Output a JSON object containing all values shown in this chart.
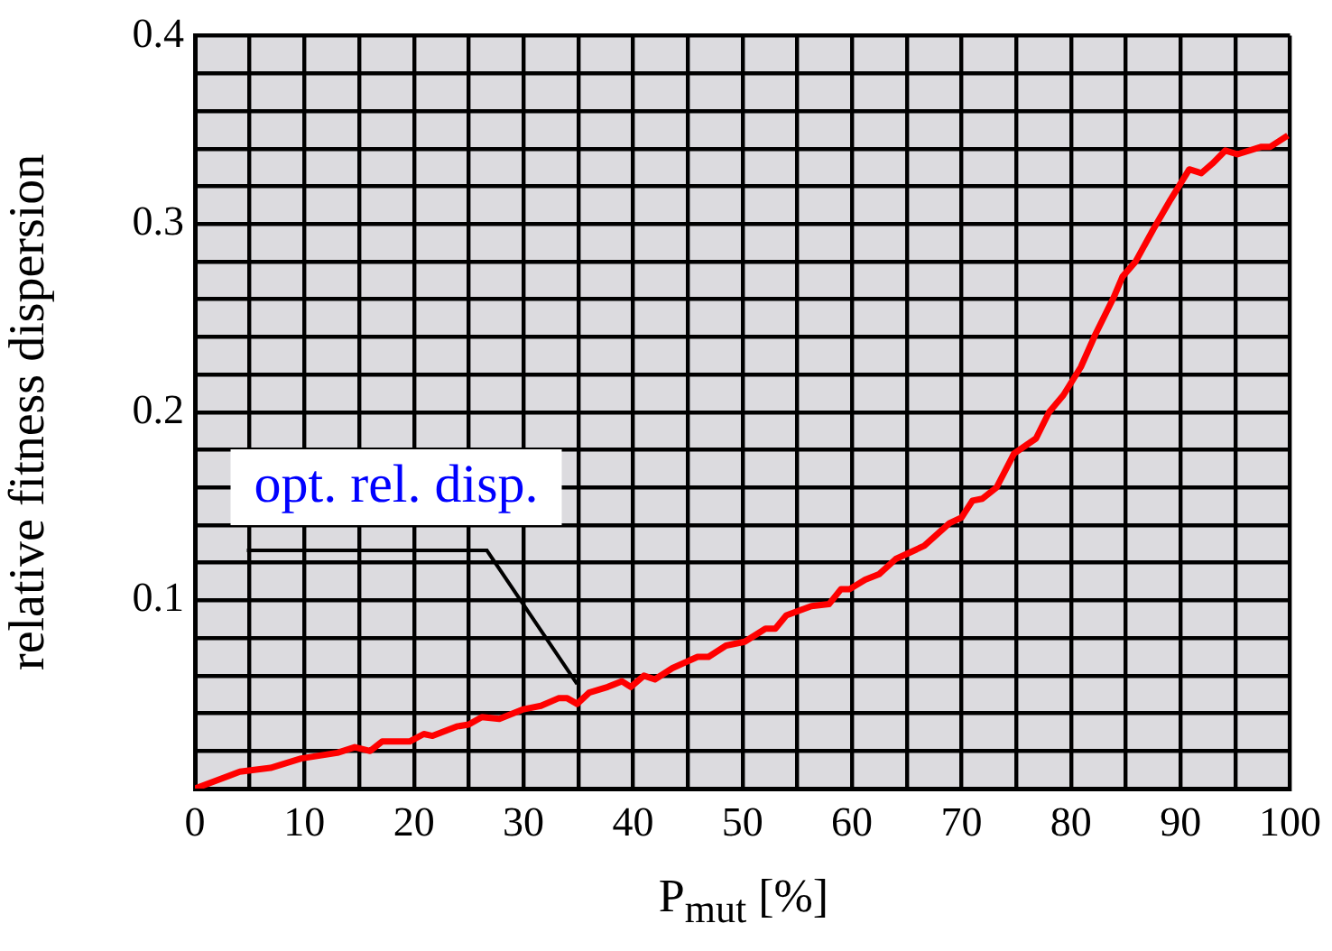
{
  "chart_data": {
    "type": "line",
    "xlabel": "P$_{mut}$ [%]",
    "ylabel": "relative fitness dispersion",
    "x": [
      0,
      4.1,
      6.9,
      9.7,
      13,
      14.6,
      16,
      17.1,
      19.6,
      20.9,
      21.7,
      23.9,
      25,
      26.2,
      27.8,
      29.9,
      31.6,
      33.2,
      34,
      34.9,
      36,
      37.7,
      39,
      39.8,
      41,
      42,
      43.6,
      45.9,
      46.9,
      48.5,
      50.2,
      52.1,
      53,
      54,
      56.3,
      57.9,
      59,
      59.8,
      61.2,
      62.5,
      64,
      66.6,
      68.9,
      70,
      71,
      71.9,
      73.2,
      74.8,
      76.8,
      78,
      79.3,
      80.9,
      82.2,
      83.9,
      84.7,
      85.9,
      87.5,
      89.1,
      90.8,
      91.9,
      92.9,
      94.1,
      95.2,
      97.4,
      98.2,
      99.8
    ],
    "series": [
      {
        "color": "#ff0000",
        "values": [
          0,
          0.009,
          0.011,
          0.016,
          0.019,
          0.022,
          0.02,
          0.025,
          0.025,
          0.029,
          0.028,
          0.033,
          0.034,
          0.038,
          0.037,
          0.042,
          0.044,
          0.048,
          0.048,
          0.045,
          0.051,
          0.054,
          0.057,
          0.054,
          0.06,
          0.058,
          0.064,
          0.07,
          0.07,
          0.076,
          0.078,
          0.085,
          0.085,
          0.092,
          0.097,
          0.098,
          0.106,
          0.106,
          0.111,
          0.114,
          0.122,
          0.129,
          0.141,
          0.144,
          0.153,
          0.154,
          0.16,
          0.178,
          0.186,
          0.2,
          0.209,
          0.224,
          0.241,
          0.261,
          0.272,
          0.28,
          0.297,
          0.313,
          0.329,
          0.327,
          0.332,
          0.339,
          0.337,
          0.341,
          0.341,
          0.347
        ]
      }
    ],
    "xlim": [
      0,
      100
    ],
    "xticks": [
      0,
      {
        "value": 5,
        "label": null
      },
      10,
      {
        "value": 15,
        "label": null
      },
      20,
      {
        "value": 25,
        "label": null
      },
      30,
      {
        "value": 35,
        "label": null
      },
      40,
      {
        "value": 45,
        "label": null
      },
      50,
      {
        "value": 55,
        "label": null
      },
      60,
      {
        "value": 65,
        "label": null
      },
      70,
      {
        "value": 75,
        "label": null
      },
      80,
      {
        "value": 85,
        "label": null
      },
      90,
      {
        "value": 95,
        "label": null
      },
      100
    ],
    "ylim": [
      0,
      0.4
    ],
    "yticks": [
      {
        "value": 0,
        "label": null
      },
      {
        "value": 0.02,
        "label": null
      },
      {
        "value": 0.04,
        "label": null
      },
      {
        "value": 0.06,
        "label": null
      },
      {
        "value": 0.08,
        "label": null
      },
      0.1,
      {
        "value": 0.12,
        "label": null
      },
      {
        "value": 0.14,
        "label": null
      },
      {
        "value": 0.16,
        "label": null
      },
      {
        "value": 0.18,
        "label": null
      },
      0.2,
      {
        "value": 0.22,
        "label": null
      },
      {
        "value": 0.24,
        "label": null
      },
      {
        "value": 0.26,
        "label": null
      },
      {
        "value": 0.28,
        "label": null
      },
      0.3,
      {
        "value": 0.32,
        "label": null
      },
      {
        "value": 0.34,
        "label": null
      },
      {
        "value": 0.36,
        "label": null
      },
      {
        "value": 0.38,
        "label": null
      },
      0.4
    ],
    "grid": true,
    "marker": "none",
    "line_style": "solid",
    "legend": false,
    "annotations": [
      "opt. rel. disp."
    ]
  }
}
